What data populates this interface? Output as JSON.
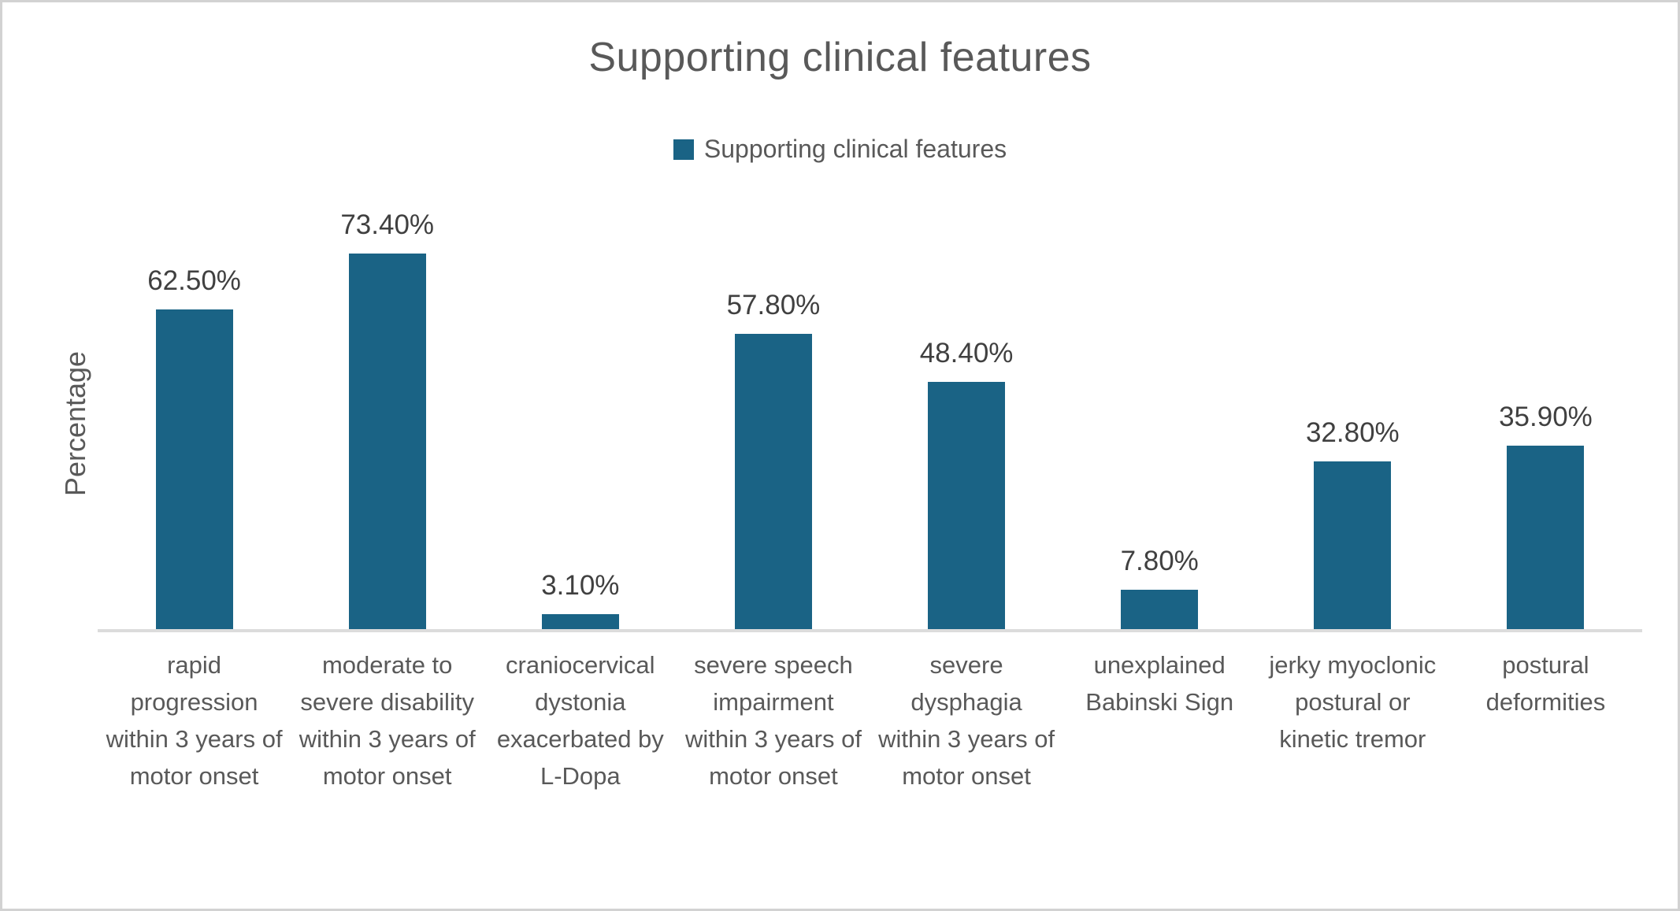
{
  "chart_data": {
    "type": "bar",
    "title": "Supporting clinical features",
    "legend": [
      "Supporting clinical features"
    ],
    "legend_position": "top",
    "xlabel": "",
    "ylabel": "Percentage",
    "ylim": [
      0,
      100
    ],
    "grid": false,
    "categories": [
      "rapid progression within 3 years of motor onset",
      "moderate to severe disability within 3 years of motor onset",
      "craniocervical dystonia exacerbated by L-Dopa",
      "severe speech impairment within 3 years of motor onset",
      "severe dysphagia within 3 years of motor onset",
      "unexplained Babinski Sign",
      "jerky myoclonic postural or kinetic tremor",
      "postural deformities"
    ],
    "values": [
      62.5,
      73.4,
      3.1,
      57.8,
      48.4,
      7.8,
      32.8,
      35.9
    ],
    "data_labels": [
      "62.50%",
      "73.40%",
      "3.10%",
      "57.80%",
      "48.40%",
      "7.80%",
      "32.80%",
      "35.90%"
    ]
  },
  "style": {
    "bar_color": "#1A6385",
    "title_color": "#595959",
    "label_color": "#595959",
    "data_label_color": "#404040",
    "axis_line_color": "#DCDCDC",
    "background": "#FFFFFF",
    "frame_border_color": "#D2D2D2"
  }
}
